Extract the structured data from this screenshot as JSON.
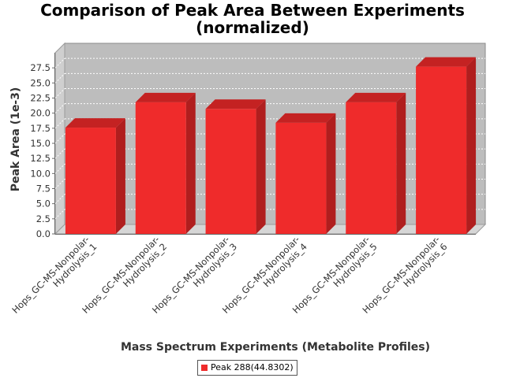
{
  "chart_data": {
    "type": "bar",
    "title_lines": [
      "Comparison of Peak Area Between Experiments",
      "(normalized)"
    ],
    "xlabel": "Mass Spectrum Experiments (Metabolite Profiles)",
    "ylabel": "Peak Area (1e-3)",
    "categories": [
      [
        "Hops_GC-MS-Nonpolar-",
        "Hydrolysis_1"
      ],
      [
        "Hops_GC-MS-Nonpolar-",
        "Hydrolysis_2"
      ],
      [
        "Hops_GC-MS-Nonpolar-",
        "Hydrolysis_3"
      ],
      [
        "Hops_GC-MS-Nonpolar-",
        "Hydrolysis_4"
      ],
      [
        "Hops_GC-MS-Nonpolar-",
        "Hydrolysis_5"
      ],
      [
        "Hops_GC-MS-Nonpolar-",
        "Hydrolysis_6"
      ]
    ],
    "series": [
      {
        "name": "Peak 288(44.8302)",
        "values": [
          17.6,
          21.8,
          20.7,
          18.4,
          21.8,
          27.7
        ]
      }
    ],
    "yticks": [
      "0.0",
      "2.5",
      "5.0",
      "7.5",
      "10.0",
      "12.5",
      "15.0",
      "17.5",
      "20.0",
      "22.5",
      "25.0",
      "27.5"
    ],
    "ylim": [
      0,
      30
    ],
    "grid": true,
    "legend_position": "bottom",
    "colors": {
      "bar": "#ef2b2b",
      "bar_top": "#c42222",
      "bar_side": "#b01e1e",
      "plot_bg": "#bdbdbd"
    }
  }
}
